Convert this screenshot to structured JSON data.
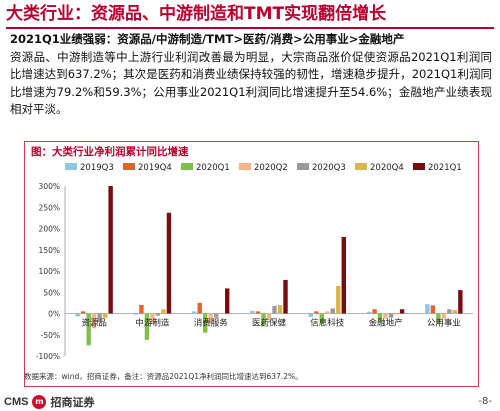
{
  "page": {
    "title": "大类行业：资源品、中游制造和TMT实现翻倍增长",
    "para_bold": "2021Q1业绩强弱：资源品/中游制造/TMT>医药/消费>公用事业>金融地产",
    "para_body": "资源品、中游制造等中上游行业利润改善最为明显，大宗商品涨价促使资源品2021Q1利润同比增速达到637.2%；其次是医药和消费业绩保持较强的韧性，增速稳步提升，2021Q1利润同比增速为79.2%和59.3%；公用事业2021Q1利润同比增速提升至54.6%；金融地产业绩表现相对平淡。",
    "figure_title": "图：大类行业净利润累计同比增速",
    "note": "数据来源：wind，招商证券，备注：资源品2021Q1净利润同比增速达到637.2%。",
    "footer_cms": "CMS",
    "footer_firm": "招商证券",
    "page_number": "-8-"
  },
  "chart_data": {
    "type": "bar",
    "categories": [
      "资源品",
      "中游制造",
      "消费服务",
      "医药保健",
      "信息科技",
      "金融地产",
      "公用事业"
    ],
    "series": [
      {
        "name": "2019Q3",
        "color": "#8ec6e6",
        "values": [
          -7,
          -3,
          5,
          6,
          -8,
          4,
          22
        ]
      },
      {
        "name": "2019Q4",
        "color": "#e8612c",
        "values": [
          5,
          20,
          25,
          5,
          5,
          10,
          19
        ]
      },
      {
        "name": "2020Q1",
        "color": "#7fbf4a",
        "values": [
          -75,
          -62,
          -45,
          -30,
          -25,
          -20,
          -22
        ]
      },
      {
        "name": "2020Q2",
        "color": "#f5b58a",
        "values": [
          -35,
          -25,
          -25,
          -15,
          5,
          -12,
          -12
        ]
      },
      {
        "name": "2020Q3",
        "color": "#9a9a9a",
        "values": [
          -20,
          -5,
          -10,
          18,
          12,
          -10,
          10
        ]
      },
      {
        "name": "2020Q4",
        "color": "#d9b64a",
        "values": [
          -10,
          10,
          1,
          20,
          65,
          -2,
          8
        ]
      },
      {
        "name": "2021Q1",
        "color": "#7a0c10",
        "values": [
          300,
          237,
          59,
          79,
          180,
          10,
          55
        ]
      }
    ],
    "ylim": [
      -100,
      300
    ],
    "yticks": [
      "300%",
      "250%",
      "200%",
      "150%",
      "100%",
      "50%",
      "0%",
      "-50%",
      "-100%"
    ],
    "legend": "top"
  }
}
